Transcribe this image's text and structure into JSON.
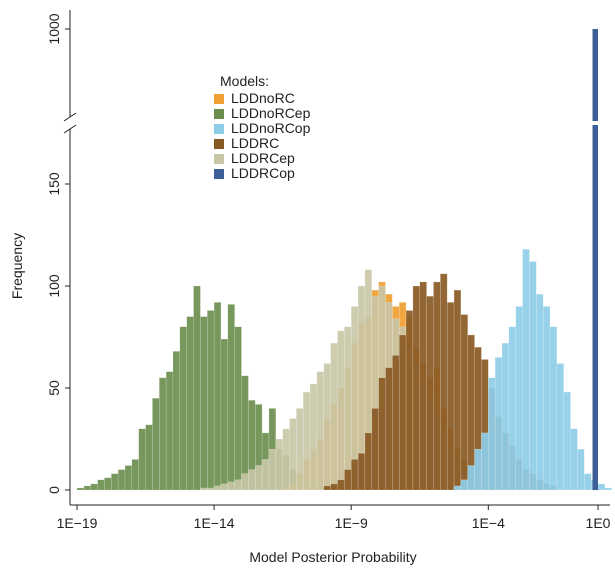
{
  "chart_data": {
    "type": "histogram",
    "title": "",
    "xlabel": "Model Posterior Probability",
    "ylabel": "Frequency",
    "x_scale": "log10",
    "xlim_log10": [
      -19,
      0
    ],
    "x_ticks": [
      {
        "log10": -19,
        "label": "1E−19"
      },
      {
        "log10": -14,
        "label": "1E−14"
      },
      {
        "log10": -9,
        "label": "1E−9"
      },
      {
        "log10": -4,
        "label": "1E−4"
      },
      {
        "log10": 0,
        "label": "1E0"
      }
    ],
    "y_axis_break": {
      "lower_range": [
        0,
        185
      ],
      "upper_value": 1000
    },
    "y_ticks_lower": [
      0,
      50,
      100,
      150
    ],
    "y_ticks_upper": [
      1000
    ],
    "bin_width_log10": 0.25,
    "legend_title": "Models:",
    "legend_position": "upper-left",
    "series": [
      {
        "name": "LDDnoRC",
        "color": "#f0a030",
        "bin_start_log10": -11.5,
        "counts": [
          1,
          3,
          8,
          15,
          20,
          25,
          35,
          42,
          50,
          60,
          72,
          82,
          85,
          98,
          102,
          96,
          90,
          92,
          85,
          70,
          62,
          55,
          60,
          40,
          30,
          20,
          15,
          10,
          5,
          3,
          2,
          1
        ]
      },
      {
        "name": "LDDnoRCep",
        "color": "#6b8e4e",
        "bin_start_log10": -19.0,
        "counts": [
          1,
          2,
          3,
          5,
          6,
          8,
          10,
          12,
          15,
          30,
          32,
          45,
          55,
          58,
          68,
          80,
          85,
          100,
          85,
          88,
          92,
          74,
          91,
          80,
          56,
          44,
          42,
          28,
          40,
          20,
          17,
          10,
          6,
          4,
          2
        ]
      },
      {
        "name": "LDDnoRCop",
        "color": "#8ecde8",
        "bin_start_log10": -5.25,
        "counts": [
          2,
          5,
          12,
          20,
          28,
          55,
          65,
          72,
          80,
          90,
          118,
          112,
          96,
          90,
          80,
          62,
          48,
          30,
          20,
          8,
          5,
          3,
          1
        ]
      },
      {
        "name": "LDDRC",
        "color": "#8a5a24",
        "bin_start_log10": -10.0,
        "counts": [
          2,
          3,
          5,
          10,
          15,
          18,
          28,
          40,
          55,
          60,
          66,
          76,
          88,
          100,
          102,
          95,
          102,
          106,
          92,
          98,
          86,
          76,
          70,
          64,
          50,
          36,
          28,
          22,
          15,
          10,
          8,
          5,
          3,
          2
        ]
      },
      {
        "name": "LDDRCep",
        "color": "#c8c6a6",
        "bin_start_log10": -14.5,
        "counts": [
          1,
          1,
          2,
          3,
          4,
          5,
          8,
          10,
          12,
          15,
          20,
          25,
          30,
          35,
          40,
          48,
          52,
          58,
          62,
          72,
          78,
          80,
          90,
          100,
          108,
          95,
          100,
          92,
          84,
          80,
          70,
          62,
          54,
          46,
          38,
          30,
          22,
          18,
          12,
          8,
          5,
          3,
          2,
          1
        ]
      },
      {
        "name": "LDDRCop",
        "color": "#3b5f96",
        "bar_log10_range": [
          -0.2,
          0.0
        ],
        "value": 1000
      }
    ]
  }
}
